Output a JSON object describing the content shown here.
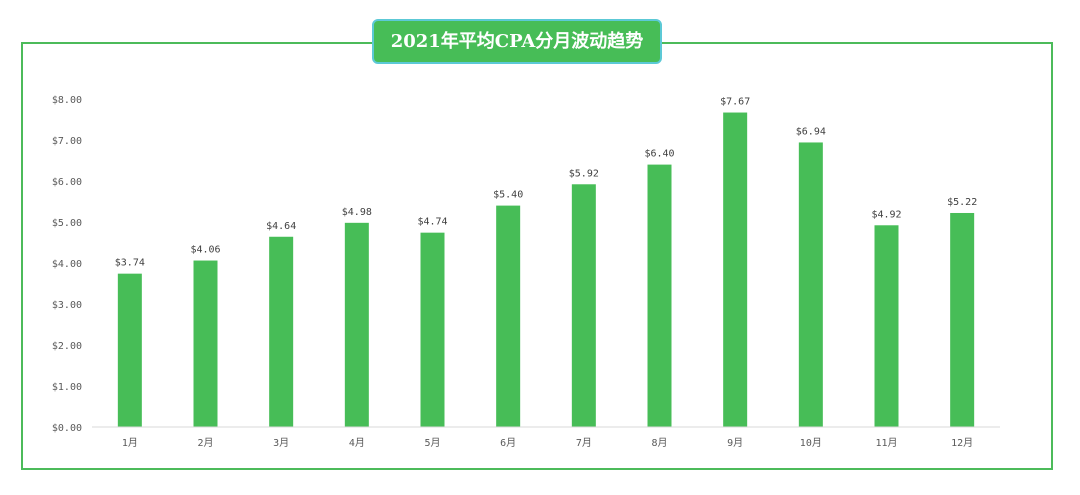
{
  "chart_data": {
    "type": "bar",
    "title": "2021年平均CPA分月波动趋势",
    "categories": [
      "1月",
      "2月",
      "3月",
      "4月",
      "5月",
      "6月",
      "7月",
      "8月",
      "9月",
      "10月",
      "11月",
      "12月"
    ],
    "values": [
      3.74,
      4.06,
      4.64,
      4.98,
      4.74,
      5.4,
      5.92,
      6.4,
      7.67,
      6.94,
      4.92,
      5.22
    ],
    "data_labels": [
      "$3.74",
      "$4.06",
      "$4.64",
      "$4.98",
      "$4.74",
      "$5.40",
      "$5.92",
      "$6.40",
      "$7.67",
      "$6.94",
      "$4.92",
      "$5.22"
    ],
    "y_ticks": [
      0,
      1,
      2,
      3,
      4,
      5,
      6,
      7,
      8
    ],
    "y_tick_labels": [
      "$0.00",
      "$1.00",
      "$2.00",
      "$3.00",
      "$4.00",
      "$5.00",
      "$6.00",
      "$7.00",
      "$8.00"
    ],
    "ylim": [
      0,
      8
    ],
    "grid": false,
    "legend": "none",
    "colors": {
      "bar": "#47bd57",
      "frame": "#4cbb5a",
      "title_bg": "#47bd57",
      "title_border": "#5cc9d6"
    }
  }
}
